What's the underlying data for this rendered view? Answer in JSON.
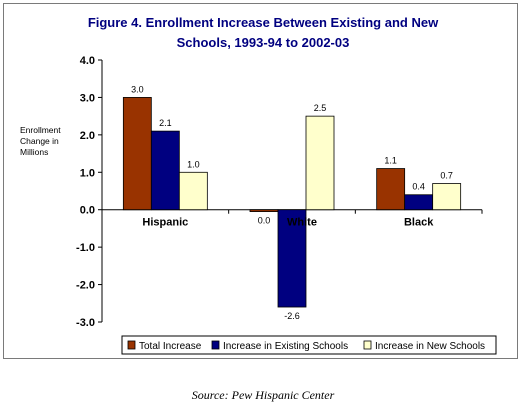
{
  "chart_data": {
    "type": "bar",
    "title_line1": "Figure 4. Enrollment Increase Between Existing and New",
    "title_line2": "Schools,  1993-94 to 2002-03",
    "ylabel_lines": [
      "Enrollment",
      "Change in",
      "Millions"
    ],
    "categories": [
      "Hispanic",
      "White",
      "Black"
    ],
    "series": [
      {
        "name": "Total Increase",
        "color": "#993300",
        "values": [
          3.0,
          -0.05,
          1.1
        ],
        "labels": [
          "3.0",
          "0.0",
          "1.1"
        ]
      },
      {
        "name": "Increase in Existing Schools",
        "color": "#000080",
        "values": [
          2.1,
          -2.6,
          0.4
        ],
        "labels": [
          "2.1",
          "-2.6",
          "0.4"
        ]
      },
      {
        "name": "Increase in New Schools",
        "color": "#FFFFCC",
        "values": [
          1.0,
          2.5,
          0.7
        ],
        "labels": [
          "1.0",
          "2.5",
          "0.7"
        ]
      }
    ],
    "ylim": [
      -3.0,
      4.0
    ],
    "yticks": [
      4.0,
      3.0,
      2.0,
      1.0,
      0.0,
      -1.0,
      -2.0,
      -3.0
    ],
    "ytick_labels": [
      "4.0",
      "3.0",
      "2.0",
      "1.0",
      "0.0",
      "-1.0",
      "-2.0",
      "-3.0"
    ],
    "legend_position": "bottom-right",
    "title_color": "#000080"
  },
  "source": "Source: Pew Hispanic Center"
}
